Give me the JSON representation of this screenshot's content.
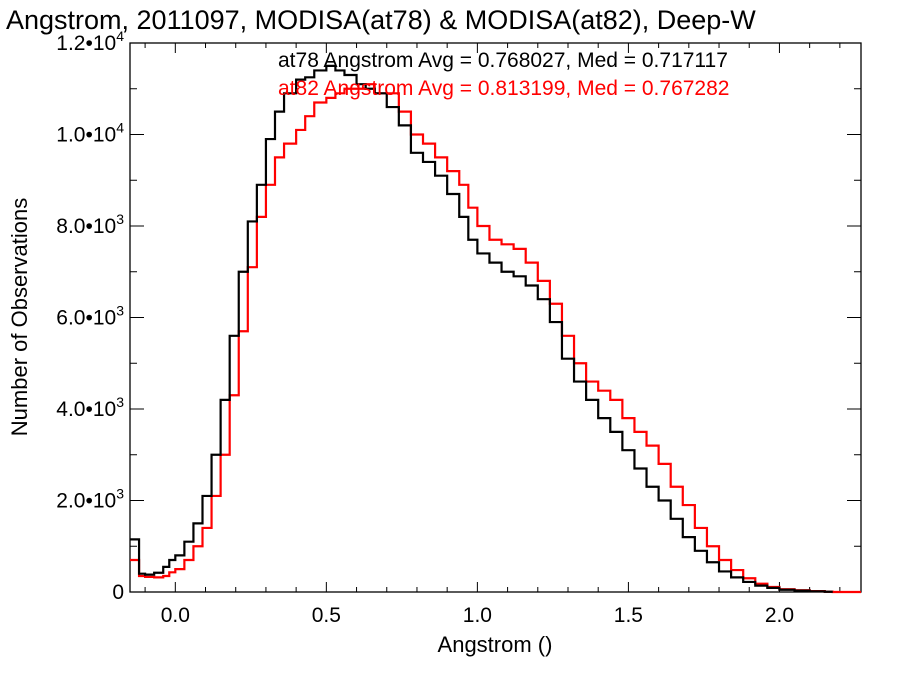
{
  "chart_data": {
    "type": "line",
    "title": "Angstrom, 2011097, MODISA(at78) & MODISA(at82), Deep-W",
    "xlabel": "Angstrom ()",
    "ylabel": "Number of Observations",
    "xlim": [
      -0.15,
      2.27
    ],
    "ylim": [
      0,
      12000
    ],
    "x_ticks": [
      {
        "value": 0.0,
        "label": "0.0"
      },
      {
        "value": 0.5,
        "label": "0.5"
      },
      {
        "value": 1.0,
        "label": "1.0"
      },
      {
        "value": 1.5,
        "label": "1.5"
      },
      {
        "value": 2.0,
        "label": "2.0"
      }
    ],
    "y_ticks": [
      {
        "value": 0,
        "label": "0"
      },
      {
        "value": 2000,
        "label": "2.0•10",
        "exp": "3"
      },
      {
        "value": 4000,
        "label": "4.0•10",
        "exp": "3"
      },
      {
        "value": 6000,
        "label": "6.0•10",
        "exp": "3"
      },
      {
        "value": 8000,
        "label": "8.0•10",
        "exp": "3"
      },
      {
        "value": 10000,
        "label": "1.0•10",
        "exp": "4"
      },
      {
        "value": 12000,
        "label": "1.2•10",
        "exp": "4"
      }
    ],
    "grid": false,
    "step": true,
    "series": [
      {
        "name": "at78",
        "color": "#000000",
        "annotation": "at78 Angstrom Avg = 0.768027, Med = 0.717117",
        "x": [
          -0.15,
          -0.12,
          -0.1,
          -0.07,
          -0.04,
          -0.02,
          0.0,
          0.03,
          0.06,
          0.09,
          0.12,
          0.15,
          0.18,
          0.21,
          0.24,
          0.27,
          0.3,
          0.33,
          0.36,
          0.4,
          0.43,
          0.46,
          0.5,
          0.53,
          0.56,
          0.6,
          0.63,
          0.66,
          0.7,
          0.74,
          0.78,
          0.82,
          0.86,
          0.9,
          0.94,
          0.97,
          1.0,
          1.04,
          1.08,
          1.12,
          1.16,
          1.2,
          1.24,
          1.28,
          1.32,
          1.36,
          1.4,
          1.44,
          1.48,
          1.52,
          1.56,
          1.6,
          1.64,
          1.68,
          1.72,
          1.76,
          1.8,
          1.84,
          1.88,
          1.92,
          1.96,
          2.0,
          2.05,
          2.1,
          2.15
        ],
        "y": [
          1150,
          400,
          380,
          420,
          550,
          700,
          800,
          1100,
          1500,
          2100,
          3000,
          4200,
          5600,
          7000,
          8100,
          8900,
          9900,
          10500,
          10900,
          11200,
          11250,
          11400,
          11500,
          11400,
          11300,
          11100,
          11000,
          10900,
          10600,
          10200,
          9600,
          9400,
          9100,
          8700,
          8200,
          7700,
          7400,
          7200,
          7000,
          6900,
          6700,
          6400,
          5900,
          5100,
          4600,
          4200,
          3800,
          3500,
          3100,
          2700,
          2300,
          2000,
          1600,
          1200,
          900,
          650,
          450,
          320,
          220,
          140,
          90,
          50,
          30,
          15,
          5
        ]
      },
      {
        "name": "at82",
        "color": "#ff0000",
        "annotation": "at82 Angstrom Avg = 0.813199, Med = 0.767282",
        "x": [
          -0.15,
          -0.12,
          -0.1,
          -0.07,
          -0.04,
          -0.02,
          0.0,
          0.03,
          0.06,
          0.09,
          0.12,
          0.15,
          0.18,
          0.21,
          0.24,
          0.27,
          0.3,
          0.33,
          0.36,
          0.4,
          0.43,
          0.46,
          0.5,
          0.53,
          0.56,
          0.6,
          0.63,
          0.66,
          0.7,
          0.74,
          0.78,
          0.82,
          0.86,
          0.9,
          0.94,
          0.97,
          1.0,
          1.04,
          1.08,
          1.12,
          1.16,
          1.2,
          1.24,
          1.28,
          1.32,
          1.36,
          1.4,
          1.44,
          1.48,
          1.52,
          1.56,
          1.6,
          1.64,
          1.68,
          1.72,
          1.76,
          1.8,
          1.84,
          1.88,
          1.92,
          1.96,
          2.0,
          2.05,
          2.1,
          2.15
        ],
        "y": [
          700,
          350,
          330,
          320,
          350,
          430,
          500,
          700,
          1000,
          1400,
          2100,
          3000,
          4300,
          5700,
          7100,
          8200,
          8900,
          9500,
          9800,
          10100,
          10400,
          10700,
          10800,
          10900,
          11000,
          11000,
          11100,
          10900,
          10900,
          10500,
          10000,
          9800,
          9500,
          9200,
          8900,
          8400,
          8000,
          7700,
          7600,
          7500,
          7200,
          6800,
          6300,
          5600,
          5000,
          4600,
          4400,
          4200,
          3800,
          3500,
          3200,
          2800,
          2300,
          1900,
          1400,
          1000,
          700,
          480,
          300,
          180,
          110,
          60,
          40,
          20,
          5
        ]
      }
    ]
  }
}
